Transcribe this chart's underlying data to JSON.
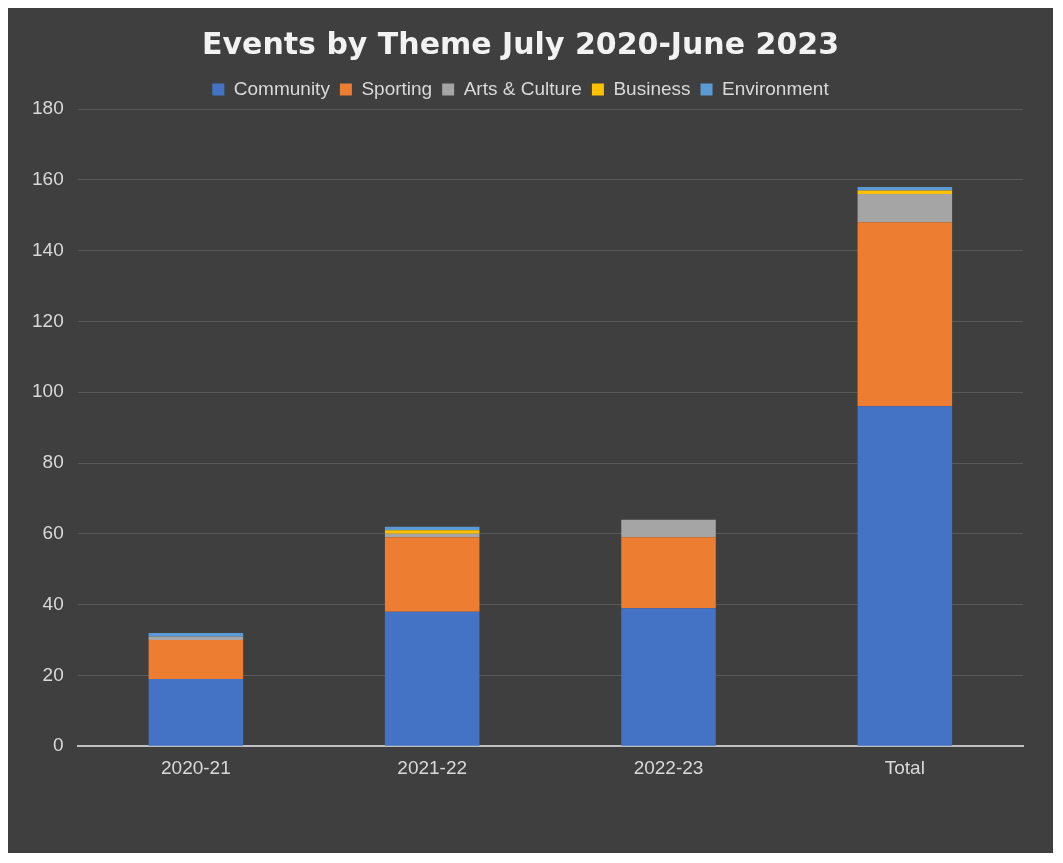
{
  "chart_data": {
    "type": "bar",
    "title": "Events by Theme July 2020-June 2023",
    "categories": [
      "2020-21",
      "2021-22",
      "2022-23",
      "Total"
    ],
    "stacked": true,
    "series": [
      {
        "name": "Community",
        "color": "#4472c4",
        "values": [
          19,
          38,
          39,
          96
        ]
      },
      {
        "name": "Sporting",
        "color": "#ed7d31",
        "values": [
          11,
          21,
          20,
          52
        ]
      },
      {
        "name": "Arts & Culture",
        "color": "#a5a5a5",
        "values": [
          1,
          1,
          5,
          8
        ]
      },
      {
        "name": "Business",
        "color": "#ffc000",
        "values": [
          0,
          1,
          0,
          1
        ]
      },
      {
        "name": "Environment",
        "color": "#5b9bd5",
        "values": [
          1,
          1,
          0,
          1
        ]
      }
    ],
    "ylim": [
      0,
      180
    ],
    "yticks": [
      0,
      20,
      40,
      60,
      80,
      100,
      120,
      140,
      160,
      180
    ],
    "grid": "y",
    "legend": "top"
  }
}
